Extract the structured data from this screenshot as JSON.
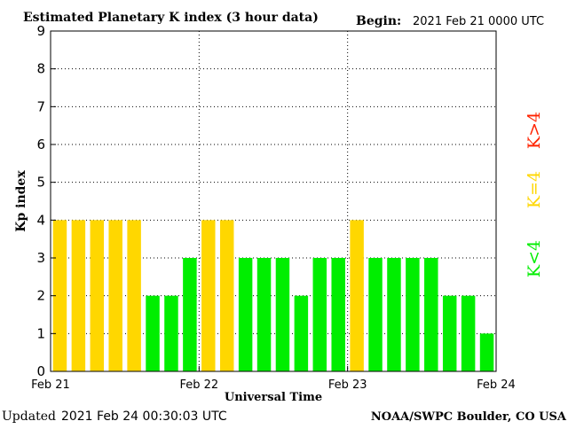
{
  "title": "Estimated Planetary K index (3 hour data)",
  "begin_label": "Begin:",
  "begin_value": "2021 Feb 21 0000 UTC",
  "updated_label": "Updated",
  "updated_value": "2021 Feb 24 00:30:03 UTC",
  "credit": "NOAA/SWPC Boulder, CO USA",
  "colors": {
    "low": "#00ee00",
    "storm_watch": "#ffd700",
    "storm": "#ff2200"
  },
  "legend": [
    {
      "label": "K<4",
      "color": "#00ee00"
    },
    {
      "label": "K=4",
      "color": "#ffd700"
    },
    {
      "label": "K>4",
      "color": "#ff2200"
    }
  ],
  "chart_data": {
    "type": "bar",
    "title": "Estimated Planetary K index (3 hour data)",
    "xlabel": "Universal Time",
    "ylabel": "Kp index",
    "ylim": [
      0,
      9
    ],
    "yticks": [
      0,
      1,
      2,
      3,
      4,
      5,
      6,
      7,
      8,
      9
    ],
    "xticks": [
      "Feb 21",
      "Feb 22",
      "Feb 23",
      "Feb 24"
    ],
    "interval_hours": 3,
    "values": [
      4,
      4,
      4,
      4,
      4,
      2,
      2,
      3,
      4,
      4,
      3,
      3,
      3,
      2,
      3,
      3,
      4,
      3,
      3,
      3,
      3,
      2,
      2,
      1
    ],
    "grid": true
  }
}
